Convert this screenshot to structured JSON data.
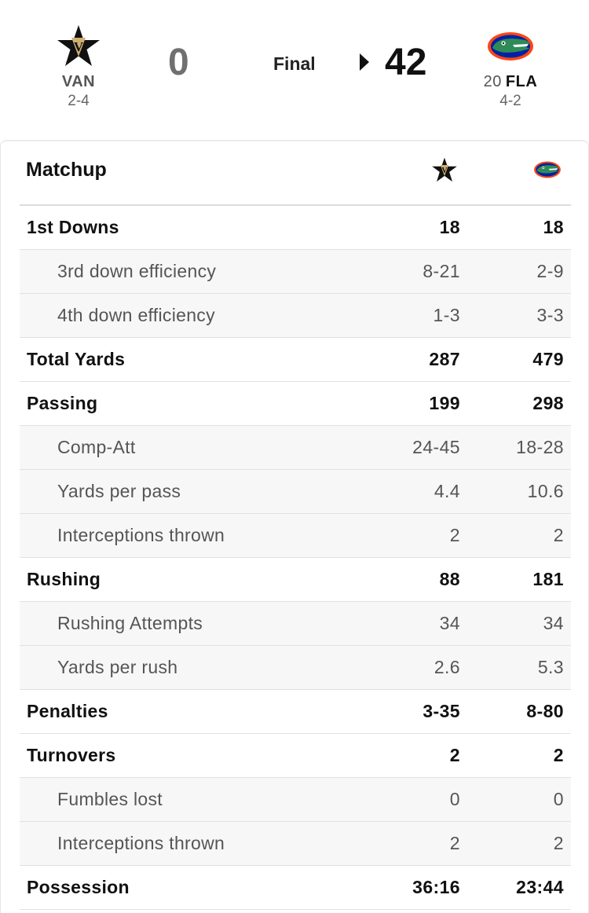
{
  "game": {
    "status": "Final",
    "away": {
      "abbr": "VAN",
      "record": "2-4",
      "score": "0",
      "logo_icon": "vanderbilt-star-icon"
    },
    "home": {
      "rank": "20",
      "abbr": "FLA",
      "record": "4-2",
      "score": "42",
      "logo_icon": "florida-gator-icon",
      "winner": true
    }
  },
  "matchup": {
    "title": "Matchup",
    "rows": [
      {
        "label": "1st Downs",
        "away": "18",
        "home": "18",
        "type": "main"
      },
      {
        "label": "3rd down efficiency",
        "away": "8-21",
        "home": "2-9",
        "type": "sub"
      },
      {
        "label": "4th down efficiency",
        "away": "1-3",
        "home": "3-3",
        "type": "sub"
      },
      {
        "label": "Total Yards",
        "away": "287",
        "home": "479",
        "type": "main"
      },
      {
        "label": "Passing",
        "away": "199",
        "home": "298",
        "type": "main"
      },
      {
        "label": "Comp-Att",
        "away": "24-45",
        "home": "18-28",
        "type": "sub"
      },
      {
        "label": "Yards per pass",
        "away": "4.4",
        "home": "10.6",
        "type": "sub"
      },
      {
        "label": "Interceptions thrown",
        "away": "2",
        "home": "2",
        "type": "sub"
      },
      {
        "label": "Rushing",
        "away": "88",
        "home": "181",
        "type": "main"
      },
      {
        "label": "Rushing Attempts",
        "away": "34",
        "home": "34",
        "type": "sub"
      },
      {
        "label": "Yards per rush",
        "away": "2.6",
        "home": "5.3",
        "type": "sub"
      },
      {
        "label": "Penalties",
        "away": "3-35",
        "home": "8-80",
        "type": "main"
      },
      {
        "label": "Turnovers",
        "away": "2",
        "home": "2",
        "type": "main"
      },
      {
        "label": "Fumbles lost",
        "away": "0",
        "home": "0",
        "type": "sub"
      },
      {
        "label": "Interceptions thrown",
        "away": "2",
        "home": "2",
        "type": "sub"
      },
      {
        "label": "Possession",
        "away": "36:16",
        "home": "23:44",
        "type": "main"
      }
    ]
  },
  "colors": {
    "away_gold": "#CFAE70",
    "home_blue": "#0021A5",
    "home_orange": "#FA4616",
    "gator_green": "#2E8B57"
  }
}
